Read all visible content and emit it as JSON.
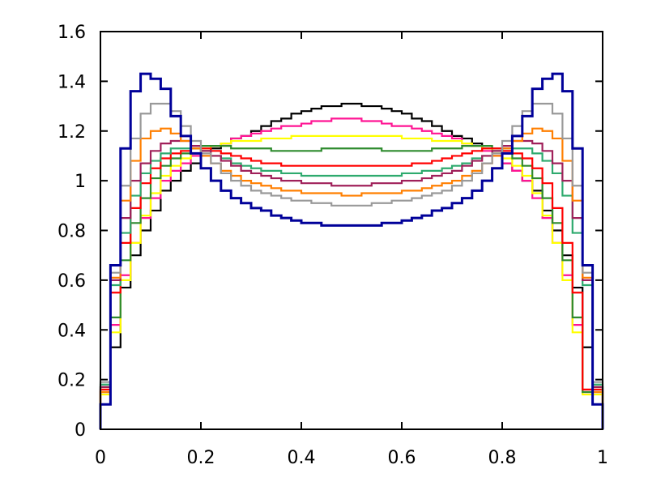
{
  "chart_data": {
    "type": "line",
    "title": "",
    "xlabel": "",
    "ylabel": "",
    "xlim": [
      0,
      1
    ],
    "ylim": [
      0,
      1.6
    ],
    "grid": false,
    "legend": "none",
    "step": true,
    "x_ticks": [
      {
        "value": 0,
        "label": "0"
      },
      {
        "value": 0.2,
        "label": "0.2"
      },
      {
        "value": 0.4,
        "label": "0.4"
      },
      {
        "value": 0.6,
        "label": "0.6"
      },
      {
        "value": 0.8,
        "label": "0.8"
      },
      {
        "value": 1,
        "label": "1"
      }
    ],
    "y_ticks": [
      {
        "value": 0,
        "label": "0"
      },
      {
        "value": 0.2,
        "label": "0.2"
      },
      {
        "value": 0.4,
        "label": "0.4"
      },
      {
        "value": 0.6,
        "label": "0.6"
      },
      {
        "value": 0.8,
        "label": "0.8"
      },
      {
        "value": 1,
        "label": "1"
      },
      {
        "value": 1.2,
        "label": "1.2"
      },
      {
        "value": 1.4,
        "label": "1.4"
      },
      {
        "value": 1.6,
        "label": "1.6"
      }
    ],
    "bins": 50,
    "series": [
      {
        "color": "#000000",
        "values": [
          0.17,
          0.33,
          0.57,
          0.7,
          0.8,
          0.88,
          0.96,
          1.0,
          1.04,
          1.07,
          1.1,
          1.13,
          1.15,
          1.17,
          1.18,
          1.2,
          1.22,
          1.24,
          1.25,
          1.27,
          1.28,
          1.29,
          1.3,
          1.3,
          1.31,
          1.31,
          1.3,
          1.3,
          1.29,
          1.28,
          1.27,
          1.25,
          1.24,
          1.22,
          1.2,
          1.18,
          1.17,
          1.15,
          1.13,
          1.1,
          1.07,
          1.04,
          1.0,
          0.96,
          0.88,
          0.8,
          0.7,
          0.57,
          0.33,
          0.17
        ]
      },
      {
        "color": "#ff1493",
        "values": [
          0.15,
          0.42,
          0.62,
          0.75,
          0.85,
          0.93,
          1.0,
          1.04,
          1.07,
          1.1,
          1.12,
          1.14,
          1.15,
          1.17,
          1.18,
          1.19,
          1.2,
          1.21,
          1.22,
          1.22,
          1.23,
          1.24,
          1.24,
          1.25,
          1.25,
          1.25,
          1.24,
          1.24,
          1.23,
          1.22,
          1.22,
          1.21,
          1.2,
          1.19,
          1.18,
          1.17,
          1.15,
          1.14,
          1.12,
          1.1,
          1.07,
          1.04,
          1.0,
          0.93,
          0.85,
          0.75,
          0.62,
          0.42,
          0.15,
          0.15
        ]
      },
      {
        "color": "#ffff00",
        "values": [
          0.14,
          0.39,
          0.6,
          0.75,
          0.86,
          0.95,
          1.02,
          1.06,
          1.09,
          1.11,
          1.13,
          1.14,
          1.15,
          1.16,
          1.16,
          1.16,
          1.17,
          1.17,
          1.17,
          1.18,
          1.18,
          1.18,
          1.18,
          1.18,
          1.18,
          1.18,
          1.18,
          1.18,
          1.18,
          1.18,
          1.17,
          1.17,
          1.17,
          1.16,
          1.16,
          1.16,
          1.15,
          1.14,
          1.13,
          1.11,
          1.09,
          1.06,
          1.02,
          0.95,
          0.86,
          0.75,
          0.6,
          0.39,
          0.14,
          0.14
        ]
      },
      {
        "color": "#2e8b2e",
        "values": [
          0.15,
          0.45,
          0.68,
          0.83,
          0.93,
          1.01,
          1.06,
          1.09,
          1.11,
          1.13,
          1.14,
          1.14,
          1.14,
          1.13,
          1.13,
          1.13,
          1.13,
          1.12,
          1.12,
          1.12,
          1.12,
          1.12,
          1.13,
          1.13,
          1.13,
          1.13,
          1.13,
          1.13,
          1.12,
          1.12,
          1.12,
          1.12,
          1.12,
          1.13,
          1.13,
          1.13,
          1.14,
          1.14,
          1.14,
          1.13,
          1.11,
          1.09,
          1.06,
          1.01,
          0.93,
          0.83,
          0.68,
          0.45,
          0.15,
          0.15
        ]
      },
      {
        "color": "#ff0000",
        "values": [
          0.16,
          0.55,
          0.75,
          0.89,
          0.99,
          1.05,
          1.09,
          1.11,
          1.12,
          1.13,
          1.13,
          1.12,
          1.11,
          1.1,
          1.09,
          1.08,
          1.07,
          1.07,
          1.06,
          1.06,
          1.06,
          1.06,
          1.06,
          1.06,
          1.06,
          1.06,
          1.06,
          1.06,
          1.06,
          1.06,
          1.06,
          1.07,
          1.07,
          1.08,
          1.09,
          1.1,
          1.11,
          1.12,
          1.13,
          1.13,
          1.12,
          1.11,
          1.09,
          1.05,
          0.99,
          0.89,
          0.75,
          0.55,
          0.16,
          0.16
        ]
      },
      {
        "color": "#2eaa6e",
        "values": [
          0.18,
          0.58,
          0.79,
          0.94,
          1.03,
          1.08,
          1.11,
          1.13,
          1.13,
          1.13,
          1.12,
          1.1,
          1.09,
          1.07,
          1.06,
          1.05,
          1.04,
          1.04,
          1.03,
          1.03,
          1.02,
          1.02,
          1.02,
          1.02,
          1.02,
          1.02,
          1.02,
          1.02,
          1.02,
          1.02,
          1.03,
          1.03,
          1.04,
          1.04,
          1.05,
          1.06,
          1.07,
          1.09,
          1.1,
          1.12,
          1.13,
          1.13,
          1.13,
          1.11,
          1.08,
          1.03,
          0.94,
          0.79,
          0.58,
          0.18
        ]
      },
      {
        "color": "#a0205a",
        "values": [
          0.17,
          0.6,
          0.85,
          1.0,
          1.07,
          1.12,
          1.15,
          1.16,
          1.16,
          1.14,
          1.12,
          1.1,
          1.08,
          1.06,
          1.04,
          1.03,
          1.02,
          1.01,
          1.0,
          1.0,
          0.99,
          0.99,
          0.99,
          0.98,
          0.98,
          0.98,
          0.98,
          0.99,
          0.99,
          0.99,
          1.0,
          1.0,
          1.01,
          1.02,
          1.03,
          1.04,
          1.06,
          1.08,
          1.1,
          1.12,
          1.14,
          1.16,
          1.16,
          1.15,
          1.12,
          1.07,
          1.0,
          0.85,
          0.6,
          0.17
        ]
      },
      {
        "color": "#ff7f00",
        "values": [
          0.15,
          0.61,
          0.92,
          1.08,
          1.17,
          1.2,
          1.21,
          1.19,
          1.16,
          1.13,
          1.1,
          1.07,
          1.04,
          1.02,
          1.0,
          0.99,
          0.98,
          0.97,
          0.96,
          0.96,
          0.95,
          0.95,
          0.95,
          0.95,
          0.94,
          0.94,
          0.95,
          0.95,
          0.95,
          0.95,
          0.96,
          0.96,
          0.97,
          0.98,
          0.99,
          1.0,
          1.02,
          1.04,
          1.07,
          1.1,
          1.13,
          1.16,
          1.19,
          1.21,
          1.2,
          1.17,
          1.08,
          0.92,
          0.61,
          0.15
        ]
      },
      {
        "color": "#999999",
        "values": [
          0.19,
          0.63,
          0.98,
          1.17,
          1.27,
          1.31,
          1.31,
          1.28,
          1.22,
          1.16,
          1.11,
          1.07,
          1.03,
          1.0,
          0.98,
          0.96,
          0.95,
          0.94,
          0.93,
          0.92,
          0.92,
          0.91,
          0.91,
          0.9,
          0.9,
          0.9,
          0.9,
          0.91,
          0.91,
          0.92,
          0.92,
          0.93,
          0.94,
          0.95,
          0.96,
          0.98,
          1.0,
          1.03,
          1.07,
          1.11,
          1.16,
          1.22,
          1.28,
          1.31,
          1.31,
          1.27,
          1.17,
          0.98,
          0.63,
          0.19
        ]
      },
      {
        "color": "#000099",
        "values": [
          0.1,
          0.66,
          1.13,
          1.36,
          1.43,
          1.41,
          1.37,
          1.26,
          1.18,
          1.11,
          1.05,
          1.0,
          0.96,
          0.93,
          0.91,
          0.89,
          0.88,
          0.86,
          0.85,
          0.84,
          0.83,
          0.83,
          0.82,
          0.82,
          0.82,
          0.82,
          0.82,
          0.82,
          0.83,
          0.83,
          0.84,
          0.85,
          0.86,
          0.88,
          0.89,
          0.91,
          0.93,
          0.96,
          1.0,
          1.05,
          1.11,
          1.18,
          1.26,
          1.37,
          1.41,
          1.43,
          1.36,
          1.13,
          0.66,
          0.1
        ]
      }
    ]
  }
}
